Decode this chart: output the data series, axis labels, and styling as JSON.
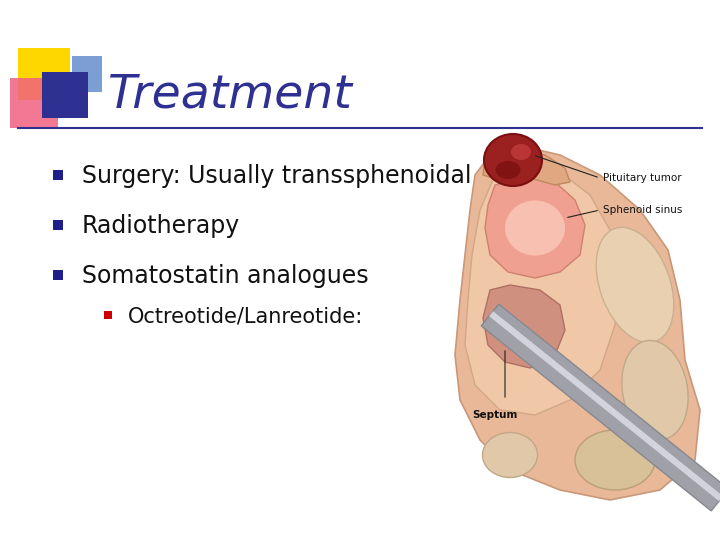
{
  "title": "Treatment",
  "title_color": "#2E3192",
  "title_fontsize": 34,
  "background_color": "#FFFFFF",
  "bullet_items": [
    "Surgery: Usually transsphenoidal",
    "Radiotherapy",
    "Somatostatin analogues"
  ],
  "sub_bullet_items": [
    "Octreotide/Lanreotide:"
  ],
  "bullet_fontsize": 17,
  "sub_bullet_fontsize": 15,
  "bullet_square_color": "#1F1F8C",
  "sub_bullet_square_color": "#CC0000",
  "line_color": "#2E3192",
  "decorator_colors": {
    "yellow": "#FFD700",
    "pink": "#F06080",
    "blue_dark": "#2E3192",
    "blue_light": "#7B9FD4"
  },
  "anatomy_labels": {
    "pituitary_tumor": "Pituitary tumor",
    "sphenoid_sinus": "Sphenoid sinus",
    "septum": "Septum"
  },
  "anatomy_label_fontsize": 7.5
}
